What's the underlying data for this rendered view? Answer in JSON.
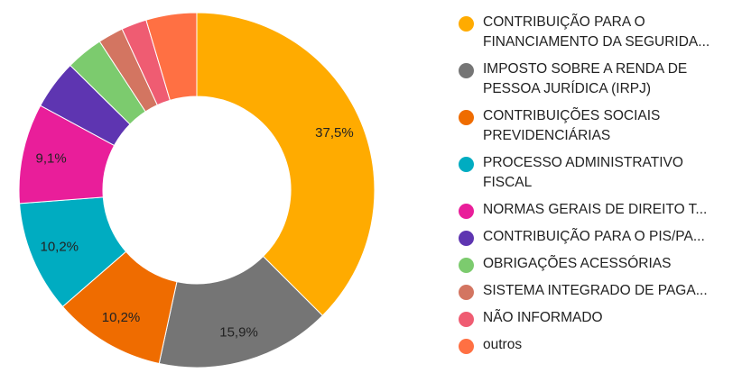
{
  "chart_data": {
    "type": "pie",
    "donut": true,
    "legend_position": "right",
    "slices": [
      {
        "label_lines": [
          "CONTRIBUIÇÃO PARA O",
          "FINANCIAMENTO DA SEGURIDA..."
        ],
        "value": 37.5,
        "value_label": "37,5%",
        "color": "#FFAB00"
      },
      {
        "label_lines": [
          "IMPOSTO SOBRE A RENDA DE",
          "PESSOA JURÍDICA (IRPJ)"
        ],
        "value": 15.9,
        "value_label": "15,9%",
        "color": "#757575"
      },
      {
        "label_lines": [
          "CONTRIBUIÇÕES SOCIAIS",
          "PREVIDENCIÁRIAS"
        ],
        "value": 10.2,
        "value_label": "10,2%",
        "color": "#EF6C00"
      },
      {
        "label_lines": [
          "PROCESSO ADMINISTRATIVO",
          "FISCAL"
        ],
        "value": 10.2,
        "value_label": "10,2%",
        "color": "#00ACC1"
      },
      {
        "label_lines": [
          "NORMAS GERAIS DE DIREITO T..."
        ],
        "value": 9.1,
        "value_label": "9,1%",
        "color": "#E91E9A"
      },
      {
        "label_lines": [
          "CONTRIBUIÇÃO PARA O PIS/PA..."
        ],
        "value": 4.5,
        "value_label": "",
        "color": "#5E35B1"
      },
      {
        "label_lines": [
          "OBRIGAÇÕES ACESSÓRIAS"
        ],
        "value": 3.4,
        "value_label": "",
        "color": "#7CCB6E"
      },
      {
        "label_lines": [
          "SISTEMA INTEGRADO DE PAGA..."
        ],
        "value": 2.3,
        "value_label": "",
        "color": "#D37561"
      },
      {
        "label_lines": [
          "NÃO INFORMADO"
        ],
        "value": 2.3,
        "value_label": "",
        "color": "#EF5C72"
      },
      {
        "label_lines": [
          "outros"
        ],
        "value": 4.6,
        "value_label": "",
        "color": "#FF7043"
      }
    ]
  }
}
